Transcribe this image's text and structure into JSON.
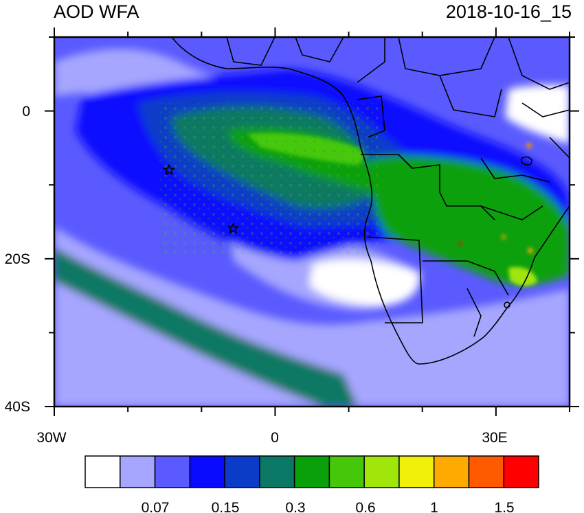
{
  "title_left": "AOD WFA",
  "title_right": "2018-10-16_15",
  "axes": {
    "x_tick_labels": [
      "30W",
      "0",
      "30E"
    ],
    "y_tick_labels": [
      "0",
      "20S",
      "40S"
    ],
    "lon_range": [
      -30,
      40
    ],
    "lat_range": [
      -40,
      10
    ]
  },
  "markers": [
    {
      "name": "star",
      "lon": -14.4,
      "lat": -8.0
    },
    {
      "name": "star",
      "lon": -5.7,
      "lat": -15.9
    }
  ],
  "colorbar": {
    "labels": [
      "0.07",
      "0.15",
      "0.3",
      "0.6",
      "1",
      "1.5"
    ],
    "colors": [
      "#ffffff",
      "#a6a6ff",
      "#5a5aff",
      "#0a0aff",
      "#0a3cc8",
      "#0a7864",
      "#0aa00a",
      "#46c80a",
      "#a0e60a",
      "#f0f00a",
      "#ffaa00",
      "#ff5a00",
      "#ff0000"
    ]
  },
  "palette": {
    "ocean_low": "#a6a6ff",
    "ocean_mid": "#5a5aff",
    "blue": "#0a0aff",
    "dark_blue": "#0a3cc8",
    "teal": "#0a7864",
    "green": "#0aa00a",
    "light_green": "#46c80a",
    "yellow_green": "#a0e60a",
    "orange": "#ffaa00",
    "red": "#ff0000",
    "border": "#000000"
  }
}
